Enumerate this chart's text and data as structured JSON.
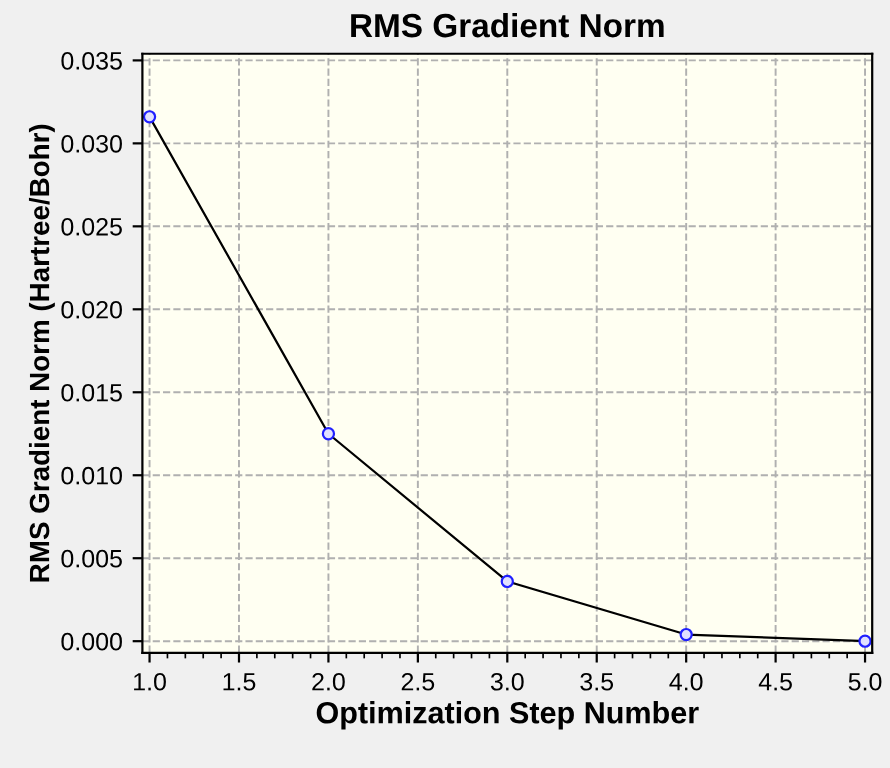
{
  "chart_data": {
    "type": "line",
    "title": "RMS Gradient Norm",
    "xlabel": "Optimization Step Number",
    "ylabel": "RMS Gradient Norm (Hartree/Bohr)",
    "x": [
      1,
      2,
      3,
      4,
      5
    ],
    "series": [
      {
        "color": "#000000",
        "values": [
          0.0316,
          0.0125,
          0.0036,
          0.0004,
          0.0
        ]
      }
    ],
    "xlim": [
      0.96,
      5.04
    ],
    "xticks": [
      {
        "value": 1,
        "label": "1.0"
      },
      1.5,
      {
        "value": 2,
        "label": "2.0"
      },
      2.5,
      {
        "value": 3,
        "label": "3.0"
      },
      3.5,
      {
        "value": 4,
        "label": "4.0"
      },
      4.5,
      {
        "value": 5,
        "label": "5.0"
      }
    ],
    "ylim": [
      -0.0007,
      0.0354
    ],
    "yticks": [
      {
        "value": 0,
        "label": "0.000"
      },
      0.005,
      {
        "value": 0.01,
        "label": "0.010"
      },
      0.015,
      {
        "value": 0.02,
        "label": "0.020"
      },
      0.025,
      {
        "value": 0.03,
        "label": "0.030"
      },
      0.035
    ],
    "grid": true,
    "marker": "circle",
    "line_style": "solid"
  }
}
